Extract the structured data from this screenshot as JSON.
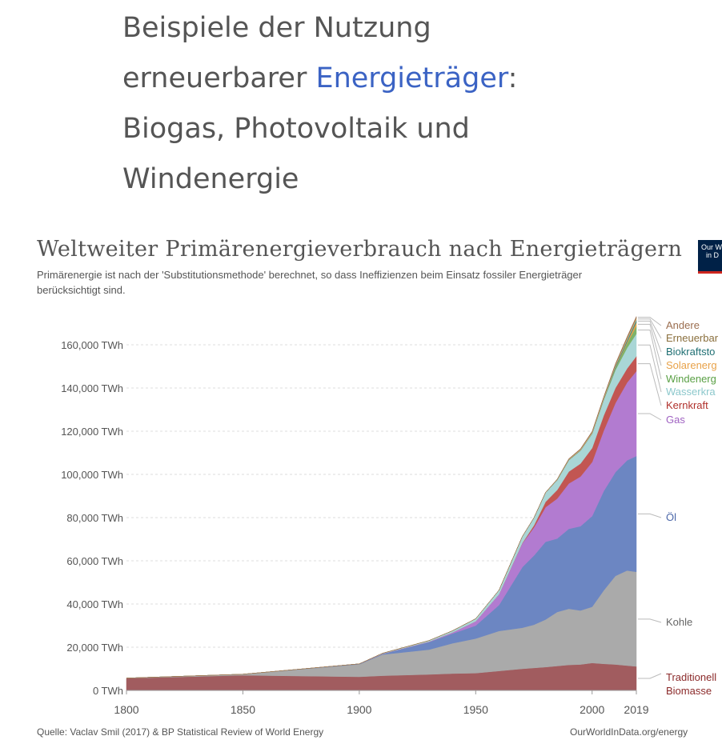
{
  "caption": {
    "line1": "Beispiele der Nutzung",
    "line2_prefix": "erneuerbarer ",
    "line2_link": "Energieträger",
    "line2_suffix": ":",
    "line3": "Biogas, Photovoltaik und",
    "line4": "Windenergie",
    "link_color": "#3b63c4"
  },
  "logo": {
    "line1": "Our W",
    "line2": "in D"
  },
  "chart_data": {
    "type": "area",
    "title": "Weltweiter Primärenergieverbrauch nach Energieträgern",
    "subtitle": "Primärenergie ist nach der 'Substitutionsmethode' berechnet, so dass Ineffizienzen beim Einsatz fossiler Energieträger berücksichtigt sind.",
    "source": "Quelle: Vaclav Smil (2017) & BP Statistical Review of World Energy",
    "site": "OurWorldInData.org/energy",
    "stacked": true,
    "xlim": [
      1800,
      2019
    ],
    "ylim": [
      0,
      170000
    ],
    "x_ticks": [
      1800,
      1850,
      1900,
      1950,
      2000,
      2019
    ],
    "y_ticks": [
      {
        "value": 0,
        "label": "0 TWh"
      },
      {
        "value": 20000,
        "label": "20,000 TWh"
      },
      {
        "value": 40000,
        "label": "40,000 TWh"
      },
      {
        "value": 60000,
        "label": "60,000 TWh"
      },
      {
        "value": 80000,
        "label": "80,000 TWh"
      },
      {
        "value": 100000,
        "label": "100,000 TWh"
      },
      {
        "value": 120000,
        "label": "120,000 TWh"
      },
      {
        "value": 140000,
        "label": "140,000 TWh"
      },
      {
        "value": 160000,
        "label": "160,000 TWh"
      }
    ],
    "grid": true,
    "x": [
      1800,
      1850,
      1900,
      1910,
      1930,
      1940,
      1950,
      1960,
      1970,
      1975,
      1980,
      1985,
      1990,
      1995,
      2000,
      2005,
      2010,
      2015,
      2019
    ],
    "series": [
      {
        "name": "Traditionelle Biomasse",
        "color": "#a15c5f",
        "values": [
          5600,
          7000,
          6300,
          6800,
          7400,
          7800,
          8000,
          9000,
          10000,
          10400,
          10800,
          11300,
          11800,
          12000,
          12700,
          12300,
          12000,
          11500,
          11100
        ]
      },
      {
        "name": "Kohle",
        "color": "#aaaaaa",
        "values": [
          100,
          500,
          5800,
          9800,
          11500,
          14000,
          16000,
          18500,
          19000,
          20000,
          22000,
          25000,
          26000,
          25000,
          26000,
          34000,
          41000,
          44000,
          43800
        ]
      },
      {
        "name": "Öl",
        "color": "#6c86c2",
        "values": [
          0,
          0,
          200,
          300,
          3500,
          4500,
          6000,
          12000,
          28000,
          32000,
          36000,
          34000,
          37000,
          39000,
          42000,
          46000,
          48000,
          51000,
          53600
        ]
      },
      {
        "name": "Gas",
        "color": "#b27bd0",
        "values": [
          0,
          0,
          0,
          100,
          200,
          500,
          2000,
          5000,
          11000,
          13000,
          16000,
          18500,
          21000,
          23000,
          25000,
          28000,
          32000,
          36000,
          39300
        ]
      },
      {
        "name": "Kernkraft",
        "color": "#c25652",
        "values": [
          0,
          0,
          0,
          0,
          0,
          0,
          0,
          0,
          200,
          1000,
          2500,
          4000,
          5500,
          6000,
          6500,
          7000,
          7000,
          6500,
          6900
        ]
      },
      {
        "name": "Wasserkraft",
        "color": "#a9d6d6",
        "values": [
          0,
          0,
          0,
          200,
          500,
          800,
          1200,
          1900,
          3000,
          3500,
          4200,
          4600,
          5300,
          6000,
          6600,
          7200,
          8300,
          9500,
          10400
        ]
      },
      {
        "name": "Windenergie",
        "color": "#7db369",
        "values": [
          0,
          0,
          0,
          0,
          0,
          0,
          0,
          0,
          0,
          0,
          0,
          0,
          0,
          10,
          80,
          250,
          900,
          2100,
          3500
        ]
      },
      {
        "name": "Solarenergie",
        "color": "#e8a249",
        "values": [
          0,
          0,
          0,
          0,
          0,
          0,
          0,
          0,
          0,
          0,
          0,
          0,
          0,
          0,
          0,
          10,
          100,
          650,
          1800
        ]
      },
      {
        "name": "Biokraftstoffe",
        "color": "#3d8a8f",
        "values": [
          0,
          0,
          0,
          0,
          0,
          0,
          0,
          0,
          0,
          0,
          50,
          100,
          150,
          150,
          150,
          250,
          700,
          950,
          1100
        ]
      },
      {
        "name": "Erneuerbare",
        "color": "#d6b97a",
        "values": [
          0,
          0,
          0,
          0,
          0,
          0,
          0,
          0,
          0,
          0,
          100,
          200,
          300,
          400,
          500,
          550,
          650,
          800,
          900
        ]
      },
      {
        "name": "Andere",
        "color": "#9b6e4f",
        "values": [
          0,
          0,
          0,
          0,
          0,
          0,
          0,
          0,
          0,
          0,
          50,
          100,
          200,
          300,
          400,
          450,
          550,
          650,
          700
        ]
      }
    ],
    "labels": [
      {
        "series": "Andere",
        "text": "Andere",
        "color": "#9b6e4f"
      },
      {
        "series": "Erneuerbare",
        "text": "Erneuerbar",
        "color": "#8a6f3d"
      },
      {
        "series": "Biokraftstoffe",
        "text": "Biokraftsto",
        "color": "#1f6f73"
      },
      {
        "series": "Solarenergie",
        "text": "Solarenerg",
        "color": "#e8a249"
      },
      {
        "series": "Windenergie",
        "text": "Windenerg",
        "color": "#5aa045"
      },
      {
        "series": "Wasserkraft",
        "text": "Wasserkra",
        "color": "#8cc8cc"
      },
      {
        "series": "Kernkraft",
        "text": "Kernkraft",
        "color": "#b0302b"
      },
      {
        "series": "Gas",
        "text": "Gas",
        "color": "#a063c2"
      },
      {
        "series": "Öl",
        "text": "Öl",
        "color": "#4a66a8"
      },
      {
        "series": "Kohle",
        "text": "Kohle",
        "color": "#666666"
      },
      {
        "series": "Traditionelle Biomasse",
        "text_line1": "Traditionell",
        "text_line2": "Biomasse",
        "color": "#8b2a2a"
      }
    ]
  }
}
